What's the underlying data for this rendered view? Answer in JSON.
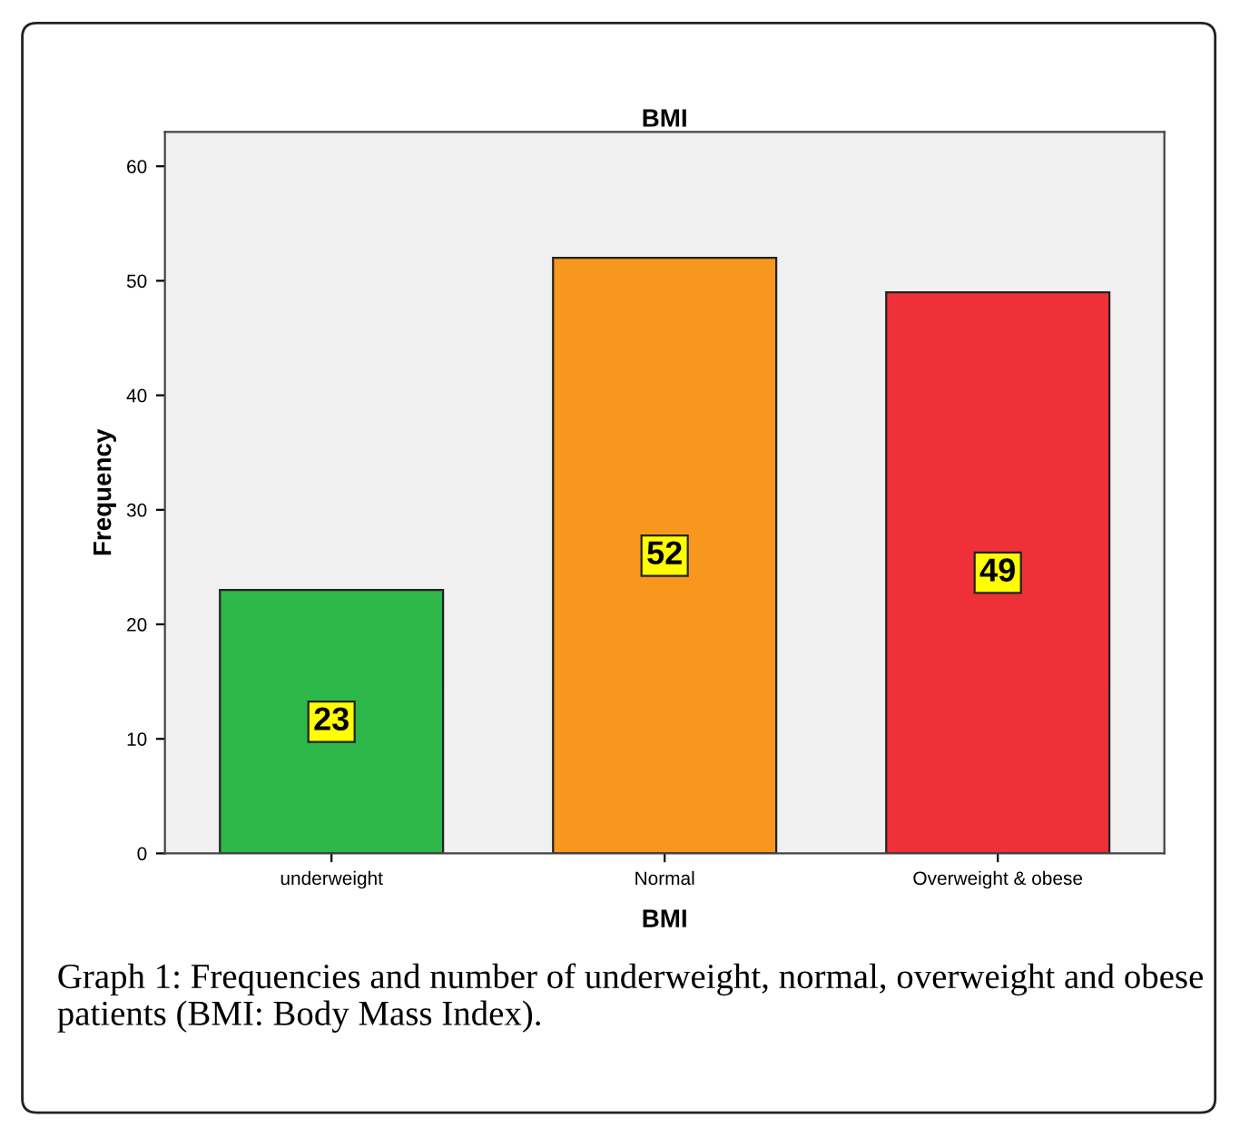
{
  "chart_data": {
    "type": "bar",
    "title": "BMI",
    "xlabel": "BMI",
    "ylabel": "Frequency",
    "categories": [
      "underweight",
      "Normal",
      "Overweight & obese"
    ],
    "values": [
      23,
      52,
      49
    ],
    "colors": [
      "#2eb84a",
      "#f7971e",
      "#ef3038"
    ],
    "ylim": [
      0,
      63
    ],
    "yticks": [
      0,
      10,
      20,
      30,
      40,
      50,
      60
    ],
    "data_labels": true,
    "grid": false,
    "legend": false,
    "annotations": [
      "Graph 1: Frequencies and number of underweight, normal, overweight and obese patients (BMI: Body Mass Index)."
    ]
  }
}
